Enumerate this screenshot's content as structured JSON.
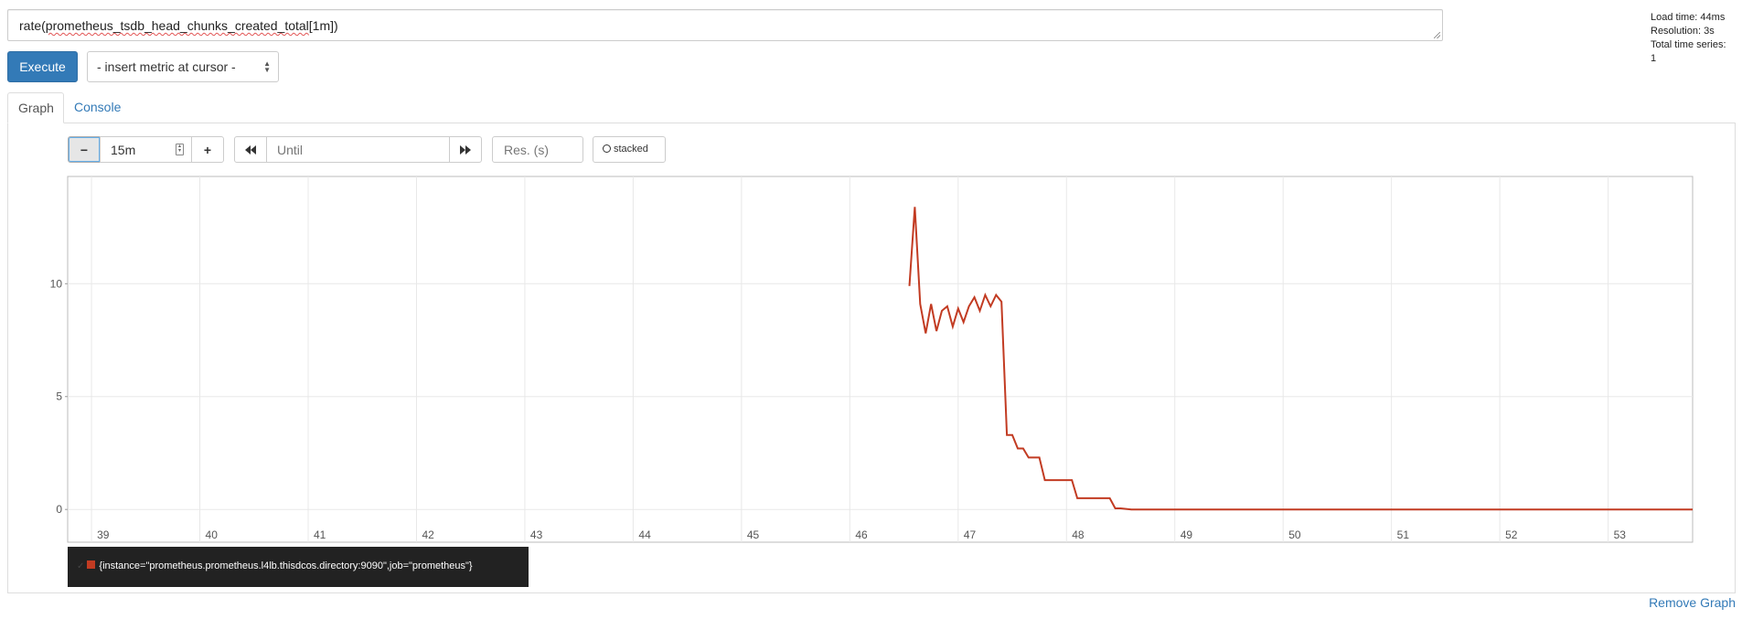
{
  "query": {
    "prefix": "rate(",
    "metric": "prometheus_tsdb_head_chunks_created_total",
    "suffix": "[1m])"
  },
  "stats": {
    "load_time": "Load time: 44ms",
    "resolution": "Resolution: 3s",
    "total_series": "Total time series: 1"
  },
  "toolbar": {
    "execute_label": "Execute",
    "metric_select": "- insert metric at cursor -"
  },
  "tabs": [
    {
      "label": "Graph",
      "active": true
    },
    {
      "label": "Console",
      "active": false
    }
  ],
  "graph_controls": {
    "minus_label": "−",
    "range_value": "15m",
    "plus_label": "+",
    "back_icon": "⏪",
    "until_placeholder": "Until",
    "forward_icon": "⏩",
    "resolution_placeholder": "Res. (s)",
    "stacked_label": "stacked"
  },
  "legend": {
    "series_label": "{instance=\"prometheus.prometheus.l4lb.thisdcos.directory:9090\",job=\"prometheus\"}",
    "color": "#c23b22"
  },
  "remove_graph_label": "Remove Graph",
  "chart_data": {
    "type": "line",
    "x_ticks": [
      "39",
      "40",
      "41",
      "42",
      "43",
      "44",
      "45",
      "46",
      "47",
      "48",
      "49",
      "50",
      "51",
      "52",
      "53"
    ],
    "y_ticks": [
      "0",
      "5",
      "10"
    ],
    "xlim": [
      38.78,
      53.78
    ],
    "ylim": [
      -1.45,
      14.75
    ],
    "grid": true,
    "series": [
      {
        "color": "#c23b22",
        "x": [
          46.55,
          46.6,
          46.65,
          46.7,
          46.75,
          46.8,
          46.85,
          46.9,
          46.95,
          47.0,
          47.05,
          47.1,
          47.15,
          47.2,
          47.25,
          47.3,
          47.35,
          47.4,
          47.45,
          47.5,
          47.55,
          47.6,
          47.65,
          47.7,
          47.75,
          47.8,
          47.9,
          48.0,
          48.05,
          48.1,
          48.2,
          48.3,
          48.4,
          48.45,
          48.5,
          48.6,
          48.65,
          53.78
        ],
        "y": [
          9.9,
          13.4,
          9.1,
          7.8,
          9.1,
          7.9,
          8.8,
          9.0,
          8.1,
          8.9,
          8.3,
          9.0,
          9.4,
          8.8,
          9.5,
          9.0,
          9.5,
          9.2,
          3.3,
          3.3,
          2.7,
          2.7,
          2.3,
          2.3,
          2.3,
          1.3,
          1.3,
          1.3,
          1.3,
          0.5,
          0.5,
          0.5,
          0.5,
          0.05,
          0.05,
          0.0,
          0.0,
          0.0
        ]
      }
    ]
  }
}
